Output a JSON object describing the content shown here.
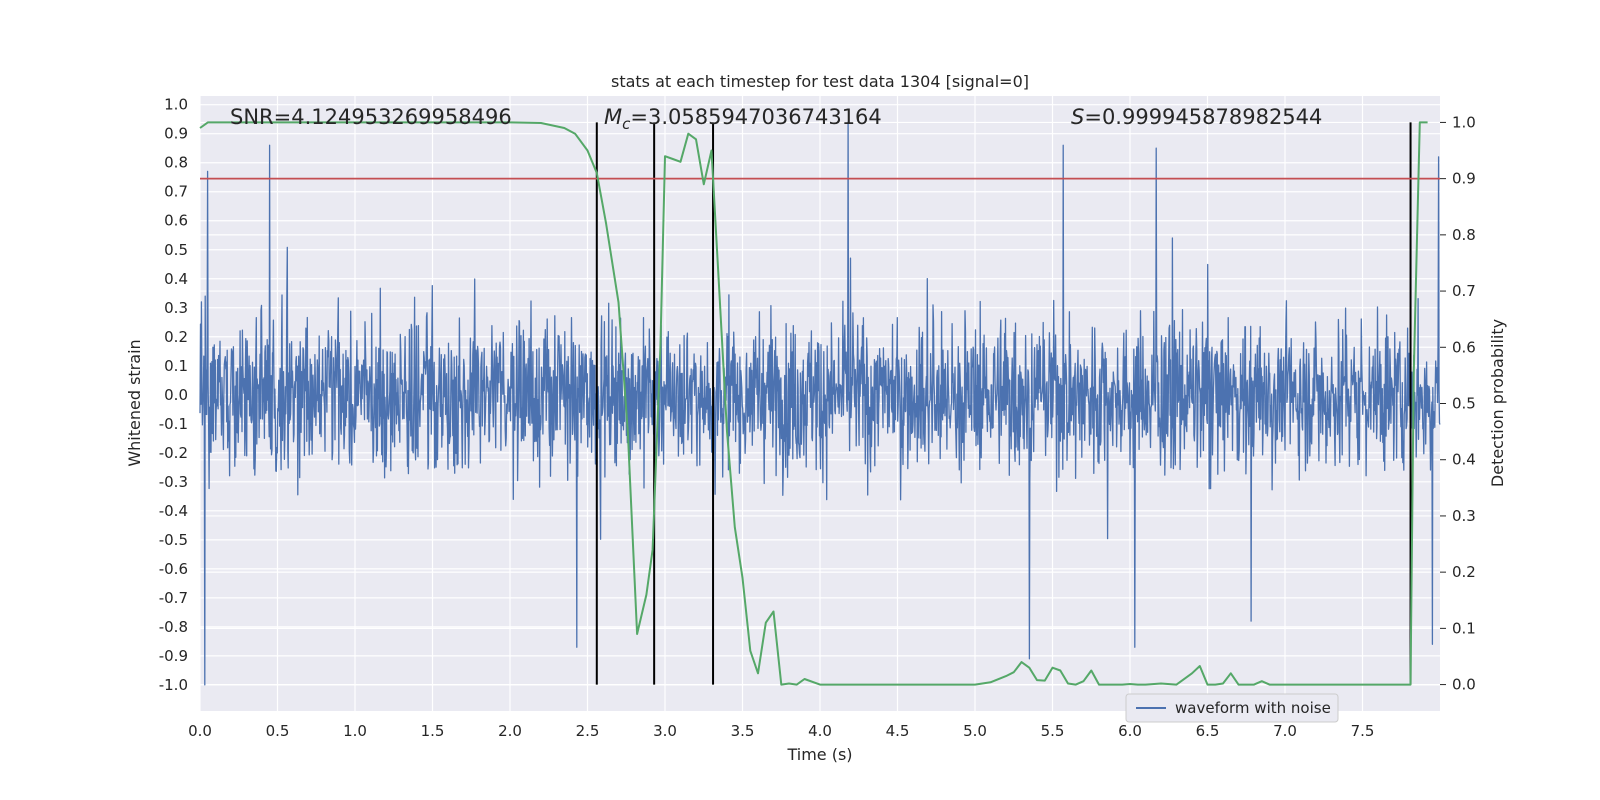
{
  "chart_data": {
    "type": "line",
    "title": "stats at each timestep for test data 1304 [signal=0]",
    "xlabel": "Time (s)",
    "ylabel": "Whitened strain",
    "y2label": "Detection probability",
    "xlim": [
      0.0,
      8.0
    ],
    "ylim": [
      -1.09,
      1.03
    ],
    "y2lim": [
      -0.047,
      1.047
    ],
    "xticks": [
      "0.0",
      "0.5",
      "1.0",
      "1.5",
      "2.0",
      "2.5",
      "3.0",
      "3.5",
      "4.0",
      "4.5",
      "5.0",
      "5.5",
      "6.0",
      "6.5",
      "7.0",
      "7.5"
    ],
    "yticks": [
      "1.0",
      "0.9",
      "0.8",
      "0.7",
      "0.6",
      "0.5",
      "0.4",
      "0.3",
      "0.2",
      "0.1",
      "0.0",
      "-0.1",
      "-0.2",
      "-0.3",
      "-0.4",
      "-0.5",
      "-0.6",
      "-0.7",
      "-0.8",
      "-0.9",
      "-1.0"
    ],
    "y2ticks": [
      "1.0",
      "0.9",
      "0.8",
      "0.7",
      "0.6",
      "0.5",
      "0.4",
      "0.3",
      "0.2",
      "0.1",
      "0.0"
    ],
    "annotations": {
      "snr_text": "SNR=4.124953269958496",
      "mc_symbol": "M",
      "mc_sub": "c",
      "mc_value": "=3.0585947036743164",
      "s_symbol": "S",
      "s_value": "=0.999945878982544"
    },
    "threshold": {
      "y2": 0.9,
      "color": "#c44e52"
    },
    "vertical_lines": [
      2.56,
      2.93,
      3.31,
      7.81
    ],
    "series": [
      {
        "name": "waveform with noise",
        "axis": "left",
        "color": "#4c72b0",
        "style": "dense noise, amplitude roughly ±0.6 with spikes to ±1.0",
        "peaks": [
          {
            "x": 0.03,
            "y": -1.0
          },
          {
            "x": 0.05,
            "y": 0.77
          },
          {
            "x": 0.45,
            "y": 0.86
          },
          {
            "x": 2.43,
            "y": -0.87
          },
          {
            "x": 4.18,
            "y": 0.94
          },
          {
            "x": 5.35,
            "y": -0.91
          },
          {
            "x": 5.57,
            "y": 0.86
          },
          {
            "x": 6.03,
            "y": -0.87
          },
          {
            "x": 6.17,
            "y": 0.85
          },
          {
            "x": 6.78,
            "y": -0.78
          },
          {
            "x": 7.95,
            "y": -0.86
          },
          {
            "x": 7.99,
            "y": 0.82
          }
        ]
      },
      {
        "name": "detection probability",
        "axis": "right",
        "color": "#55a868",
        "x": [
          0.0,
          0.05,
          0.2,
          0.5,
          1.0,
          1.5,
          2.0,
          2.2,
          2.35,
          2.42,
          2.5,
          2.56,
          2.62,
          2.7,
          2.76,
          2.82,
          2.88,
          2.92,
          2.97,
          3.0,
          3.05,
          3.1,
          3.15,
          3.2,
          3.25,
          3.3,
          3.35,
          3.4,
          3.45,
          3.5,
          3.55,
          3.6,
          3.65,
          3.7,
          3.75,
          3.8,
          3.85,
          3.9,
          4.0,
          4.1,
          4.2,
          4.5,
          5.0,
          5.1,
          5.2,
          5.25,
          5.3,
          5.35,
          5.4,
          5.45,
          5.5,
          5.55,
          5.6,
          5.65,
          5.7,
          5.75,
          5.8,
          5.85,
          5.9,
          5.95,
          6.0,
          6.05,
          6.1,
          6.2,
          6.3,
          6.4,
          6.45,
          6.5,
          6.55,
          6.6,
          6.65,
          6.7,
          6.75,
          6.8,
          6.85,
          6.9,
          7.0,
          7.05,
          7.1,
          7.15,
          7.2,
          7.3,
          7.4,
          7.5,
          7.6,
          7.7,
          7.78,
          7.81,
          7.83,
          7.87,
          7.92
        ],
        "y": [
          0.99,
          1.0,
          1.0,
          1.0,
          1.0,
          1.0,
          1.0,
          0.999,
          0.99,
          0.98,
          0.95,
          0.91,
          0.82,
          0.68,
          0.45,
          0.09,
          0.16,
          0.24,
          0.6,
          0.94,
          0.935,
          0.93,
          0.98,
          0.97,
          0.89,
          0.95,
          0.7,
          0.45,
          0.28,
          0.19,
          0.06,
          0.02,
          0.11,
          0.13,
          0.0,
          0.002,
          0.0,
          0.01,
          0.0,
          0.0,
          0.0,
          0.0,
          0.0,
          0.004,
          0.015,
          0.022,
          0.04,
          0.03,
          0.008,
          0.007,
          0.03,
          0.025,
          0.002,
          0.0,
          0.006,
          0.025,
          0.0,
          0.0,
          0.0,
          0.0,
          0.001,
          0.0,
          0.0,
          0.002,
          0.0,
          0.02,
          0.033,
          0.0,
          0.0,
          0.002,
          0.02,
          0.0,
          0.0,
          0.0,
          0.006,
          0.0,
          0.0,
          0.0,
          0.0,
          0.0,
          0.0,
          0.0,
          0.0,
          0.0,
          0.0,
          0.0,
          0.0,
          0.0,
          0.55,
          1.0,
          1.0
        ]
      }
    ],
    "legend": [
      {
        "label": "waveform with noise",
        "color": "#4c72b0"
      }
    ],
    "legend_position": "lower-right"
  }
}
